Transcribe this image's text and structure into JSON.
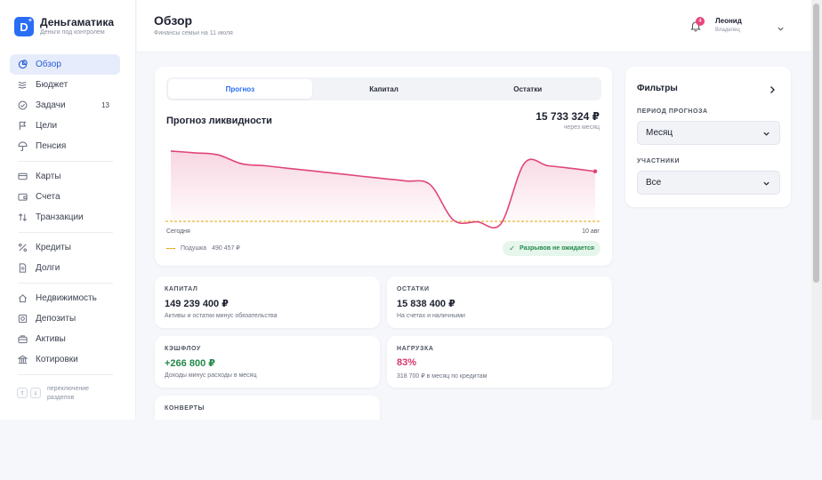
{
  "brand": {
    "name": "Деньгаматика",
    "tagline": "Деньги под контролем",
    "logo_letter": "D"
  },
  "sidebar": {
    "items": [
      {
        "label": "Обзор",
        "icon": "pie-chart-icon",
        "active": true
      },
      {
        "label": "Бюджет",
        "icon": "waves-icon"
      },
      {
        "label": "Задачи",
        "icon": "check-circle-icon",
        "badge": "13"
      },
      {
        "label": "Цели",
        "icon": "flag-icon"
      },
      {
        "label": "Пенсия",
        "icon": "umbrella-icon"
      },
      {
        "label": "Карты",
        "icon": "credit-card-icon"
      },
      {
        "label": "Счета",
        "icon": "wallet-icon"
      },
      {
        "label": "Транзакции",
        "icon": "arrows-up-down-icon"
      },
      {
        "label": "Кредиты",
        "icon": "percent-icon"
      },
      {
        "label": "Долги",
        "icon": "document-icon"
      },
      {
        "label": "Недвижимость",
        "icon": "home-icon"
      },
      {
        "label": "Депозиты",
        "icon": "safe-icon"
      },
      {
        "label": "Активы",
        "icon": "briefcase-icon"
      },
      {
        "label": "Котировки",
        "icon": "bank-icon"
      }
    ],
    "hint": {
      "up": "↑",
      "down": "↓",
      "text": "переключение разделов"
    }
  },
  "header": {
    "title": "Обзор",
    "subtitle": "Финансы семьи на 11 июля",
    "notifications": "4",
    "user_name": "Леонид",
    "user_role": "Владелец"
  },
  "forecast": {
    "tabs": [
      "Прогноз",
      "Капитал",
      "Остатки"
    ],
    "active_tab": 0,
    "title": "Прогноз ликвидности",
    "value": "15 733 324 ₽",
    "value_sub": "через месяц",
    "tick_start": "Сегодня",
    "tick_end": "10 авг",
    "cushion_label": "Подушка",
    "cushion_value": "490 457 ₽",
    "status": "Разрывов не ожидается",
    "line_color": "#e0457b",
    "cushion_color": "#e2a400"
  },
  "metrics": {
    "capital": {
      "label": "КАПИТАЛ",
      "value": "149 239 400 ₽",
      "sub": "Активы и остатки минус обязательства"
    },
    "balances": {
      "label": "ОСТАТКИ",
      "value": "15 838 400 ₽",
      "sub": "На счетах и наличными"
    },
    "cashflow": {
      "label": "КЭШФЛОУ",
      "value": "+266 800 ₽",
      "sub": "Доходы минус расходы в месяц"
    },
    "load": {
      "label": "НАГРУЗКА",
      "value": "83%",
      "sub": "318 700 ₽ в месяц по кредитам"
    },
    "envelopes": {
      "label": "КОНВЕРТЫ"
    }
  },
  "filters": {
    "title": "Фильтры",
    "period_label": "ПЕРИОД ПРОГНОЗА",
    "period_value": "Месяц",
    "participants_label": "УЧАСТНИКИ",
    "participants_value": "Все"
  },
  "chart_data": {
    "type": "area",
    "title": "Прогноз ликвидности",
    "x": [
      "Сегодня",
      "",
      "",
      "",
      "",
      "",
      "",
      "",
      "",
      "",
      "",
      "",
      "",
      "",
      "",
      "",
      "",
      "",
      "10 авг"
    ],
    "series": [
      {
        "values": [
          29.0,
          28.3,
          27.5,
          24.0,
          23.2,
          22.2,
          21.2,
          20.2,
          19.2,
          18.2,
          17.2,
          15.8,
          1.8,
          1.2,
          0.4,
          24.2,
          23.2,
          22.2,
          21.0
        ]
      }
    ],
    "reference_lines": [
      {
        "name": "Подушка",
        "value": "490 457 ₽"
      }
    ],
    "xlabel": "",
    "ylabel": ""
  }
}
